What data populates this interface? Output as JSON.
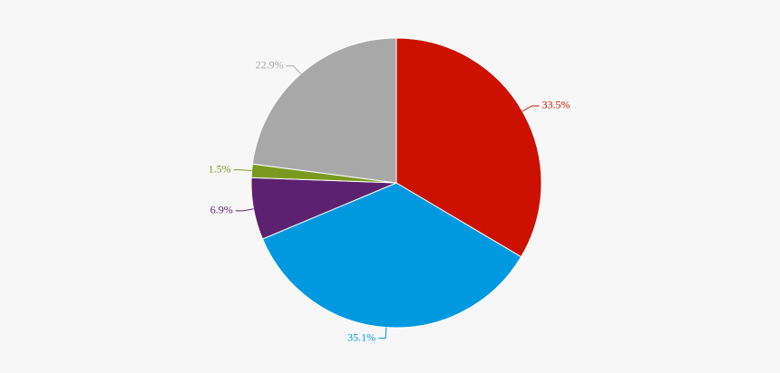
{
  "chart_data": {
    "type": "pie",
    "values": [
      33.5,
      35.1,
      6.9,
      1.5,
      22.9
    ],
    "value_labels": [
      "33.5%",
      "35.1%",
      "6.9%",
      "1.5%",
      "22.9%"
    ],
    "colors": [
      "#cc1100",
      "#0099e0",
      "#5c2170",
      "#7a9a1f",
      "#a8a8a8"
    ]
  }
}
